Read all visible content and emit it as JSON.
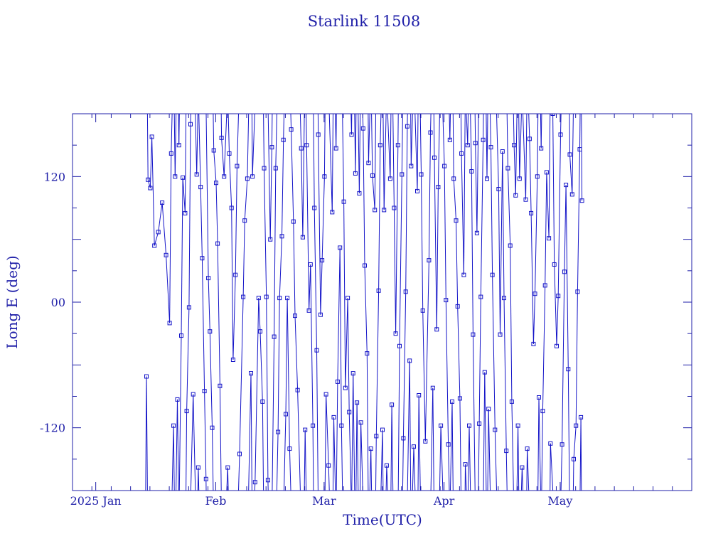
{
  "chart_data": {
    "type": "line",
    "title": "Starlink 11508",
    "xlabel": "Time(UTC)",
    "ylabel": "Long E (deg)",
    "ylim": [
      -180,
      180
    ],
    "xlim_days_from_2024_12_26": [
      0,
      160
    ],
    "grid": false,
    "x_tick_labels": [
      "2025 Jan",
      "Feb",
      "Mar",
      "Apr",
      "May"
    ],
    "y_tick_labels": [
      "120",
      "00",
      "-120"
    ],
    "y_tick_values": [
      120,
      0,
      -120
    ],
    "series_color": "#1414c8",
    "series": [
      {
        "name": "Long E",
        "points": [
          [
            "2025-01-14",
            -71
          ],
          [
            "2025-01-14",
            117
          ],
          [
            "2025-01-15",
            109
          ],
          [
            "2025-01-15",
            158
          ],
          [
            "2025-01-16",
            54
          ],
          [
            "2025-01-17",
            67
          ],
          [
            "2025-01-18",
            95
          ],
          [
            "2025-01-19",
            45
          ],
          [
            "2025-01-20",
            -20
          ],
          [
            "2025-01-20",
            142
          ],
          [
            "2025-01-21",
            -118
          ],
          [
            "2025-01-21",
            120
          ],
          [
            "2025-01-22",
            -93
          ],
          [
            "2025-01-22",
            150
          ],
          [
            "2025-01-23",
            -32
          ],
          [
            "2025-01-23",
            119
          ],
          [
            "2025-01-24",
            85
          ],
          [
            "2025-01-24",
            -104
          ],
          [
            "2025-01-25",
            -5
          ],
          [
            "2025-01-25",
            170
          ],
          [
            "2025-01-26",
            -88
          ],
          [
            "2025-01-27",
            122
          ],
          [
            "2025-01-27",
            -158
          ],
          [
            "2025-01-28",
            110
          ],
          [
            "2025-01-28",
            42
          ],
          [
            "2025-01-29",
            -85
          ],
          [
            "2025-01-29",
            -169
          ],
          [
            "2025-01-30",
            23
          ],
          [
            "2025-01-30",
            -28
          ],
          [
            "2025-01-31",
            -120
          ],
          [
            "2025-01-31",
            145
          ],
          [
            "2025-02-01",
            114
          ],
          [
            "2025-02-01",
            56
          ],
          [
            "2025-02-02",
            -80
          ],
          [
            "2025-02-02",
            157
          ],
          [
            "2025-02-03",
            120
          ],
          [
            "2025-02-04",
            -158
          ],
          [
            "2025-02-04",
            142
          ],
          [
            "2025-02-05",
            90
          ],
          [
            "2025-02-05",
            -55
          ],
          [
            "2025-02-06",
            26
          ],
          [
            "2025-02-06",
            130
          ],
          [
            "2025-02-07",
            -145
          ],
          [
            "2025-02-08",
            5
          ],
          [
            "2025-02-08",
            78
          ],
          [
            "2025-02-09",
            118
          ],
          [
            "2025-02-10",
            -68
          ],
          [
            "2025-02-10",
            120
          ],
          [
            "2025-02-11",
            -172
          ],
          [
            "2025-02-12",
            4
          ],
          [
            "2025-02-12",
            -28
          ],
          [
            "2025-02-13",
            -95
          ],
          [
            "2025-02-13",
            128
          ],
          [
            "2025-02-14",
            5
          ],
          [
            "2025-02-14",
            -170
          ],
          [
            "2025-02-15",
            60
          ],
          [
            "2025-02-15",
            148
          ],
          [
            "2025-02-16",
            -33
          ],
          [
            "2025-02-16",
            128
          ],
          [
            "2025-02-17",
            -124
          ],
          [
            "2025-02-17",
            4
          ],
          [
            "2025-02-18",
            63
          ],
          [
            "2025-02-18",
            155
          ],
          [
            "2025-02-19",
            -107
          ],
          [
            "2025-02-19",
            4
          ],
          [
            "2025-02-20",
            -140
          ],
          [
            "2025-02-20",
            165
          ],
          [
            "2025-02-21",
            77
          ],
          [
            "2025-02-21",
            -13
          ],
          [
            "2025-02-22",
            -84
          ],
          [
            "2025-02-23",
            147
          ],
          [
            "2025-02-23",
            62
          ],
          [
            "2025-02-24",
            -122
          ],
          [
            "2025-02-24",
            150
          ],
          [
            "2025-02-25",
            -8
          ],
          [
            "2025-02-25",
            36
          ],
          [
            "2025-02-26",
            -118
          ],
          [
            "2025-02-26",
            90
          ],
          [
            "2025-02-27",
            -46
          ],
          [
            "2025-02-27",
            160
          ],
          [
            "2025-02-28",
            -12
          ],
          [
            "2025-02-28",
            40
          ],
          [
            "2025-03-01",
            120
          ],
          [
            "2025-03-01",
            -88
          ],
          [
            "2025-03-02",
            -156
          ],
          [
            "2025-03-03",
            86
          ],
          [
            "2025-03-03",
            -110
          ],
          [
            "2025-03-04",
            147
          ],
          [
            "2025-03-04",
            -76
          ],
          [
            "2025-03-05",
            52
          ],
          [
            "2025-03-05",
            -118
          ],
          [
            "2025-03-06",
            96
          ],
          [
            "2025-03-06",
            -82
          ],
          [
            "2025-03-07",
            4
          ],
          [
            "2025-03-07",
            -105
          ],
          [
            "2025-03-08",
            160
          ],
          [
            "2025-03-08",
            -68
          ],
          [
            "2025-03-09",
            123
          ],
          [
            "2025-03-09",
            -96
          ],
          [
            "2025-03-10",
            104
          ],
          [
            "2025-03-10",
            -115
          ],
          [
            "2025-03-11",
            166
          ],
          [
            "2025-03-11",
            35
          ],
          [
            "2025-03-12",
            -49
          ],
          [
            "2025-03-12",
            133
          ],
          [
            "2025-03-13",
            -140
          ],
          [
            "2025-03-13",
            121
          ],
          [
            "2025-03-14",
            88
          ],
          [
            "2025-03-14",
            -128
          ],
          [
            "2025-03-15",
            11
          ],
          [
            "2025-03-15",
            150
          ],
          [
            "2025-03-16",
            -122
          ],
          [
            "2025-03-16",
            88
          ],
          [
            "2025-03-17",
            -156
          ],
          [
            "2025-03-18",
            118
          ],
          [
            "2025-03-18",
            -98
          ],
          [
            "2025-03-19",
            90
          ],
          [
            "2025-03-19",
            -30
          ],
          [
            "2025-03-20",
            150
          ],
          [
            "2025-03-20",
            -42
          ],
          [
            "2025-03-21",
            122
          ],
          [
            "2025-03-21",
            -130
          ],
          [
            "2025-03-22",
            10
          ],
          [
            "2025-03-22",
            168
          ],
          [
            "2025-03-23",
            -56
          ],
          [
            "2025-03-23",
            130
          ],
          [
            "2025-03-24",
            -138
          ],
          [
            "2025-03-25",
            106
          ],
          [
            "2025-03-25",
            -89
          ],
          [
            "2025-03-26",
            122
          ],
          [
            "2025-03-26",
            -8
          ],
          [
            "2025-03-27",
            -133
          ],
          [
            "2025-03-28",
            40
          ],
          [
            "2025-03-28",
            162
          ],
          [
            "2025-03-29",
            -82
          ],
          [
            "2025-03-29",
            138
          ],
          [
            "2025-03-30",
            -26
          ],
          [
            "2025-03-30",
            110
          ],
          [
            "2025-03-31",
            -118
          ],
          [
            "2025-04-01",
            130
          ],
          [
            "2025-04-01",
            2
          ],
          [
            "2025-04-02",
            -136
          ],
          [
            "2025-04-02",
            155
          ],
          [
            "2025-04-03",
            -95
          ],
          [
            "2025-04-03",
            118
          ],
          [
            "2025-04-04",
            78
          ],
          [
            "2025-04-04",
            -4
          ],
          [
            "2025-04-05",
            -92
          ],
          [
            "2025-04-05",
            142
          ],
          [
            "2025-04-06",
            26
          ],
          [
            "2025-04-06",
            -155
          ],
          [
            "2025-04-07",
            150
          ],
          [
            "2025-04-07",
            -118
          ],
          [
            "2025-04-08",
            125
          ],
          [
            "2025-04-08",
            -31
          ],
          [
            "2025-04-09",
            152
          ],
          [
            "2025-04-09",
            66
          ],
          [
            "2025-04-10",
            -116
          ],
          [
            "2025-04-10",
            5
          ],
          [
            "2025-04-11",
            155
          ],
          [
            "2025-04-11",
            -67
          ],
          [
            "2025-04-12",
            118
          ],
          [
            "2025-04-12",
            -102
          ],
          [
            "2025-04-13",
            148
          ],
          [
            "2025-04-13",
            26
          ],
          [
            "2025-04-14",
            -122
          ],
          [
            "2025-04-15",
            108
          ],
          [
            "2025-04-15",
            -31
          ],
          [
            "2025-04-16",
            144
          ],
          [
            "2025-04-16",
            4
          ],
          [
            "2025-04-17",
            -142
          ],
          [
            "2025-04-17",
            128
          ],
          [
            "2025-04-18",
            54
          ],
          [
            "2025-04-18",
            -95
          ],
          [
            "2025-04-19",
            150
          ],
          [
            "2025-04-19",
            102
          ],
          [
            "2025-04-20",
            -118
          ],
          [
            "2025-04-20",
            118
          ],
          [
            "2025-04-21",
            -158
          ],
          [
            "2025-04-22",
            98
          ],
          [
            "2025-04-22",
            -140
          ],
          [
            "2025-04-23",
            156
          ],
          [
            "2025-04-23",
            85
          ],
          [
            "2025-04-24",
            -40
          ],
          [
            "2025-04-24",
            8
          ],
          [
            "2025-04-25",
            120
          ],
          [
            "2025-04-25",
            -91
          ],
          [
            "2025-04-26",
            147
          ],
          [
            "2025-04-26",
            -104
          ],
          [
            "2025-04-27",
            16
          ],
          [
            "2025-04-27",
            124
          ],
          [
            "2025-04-28",
            61
          ],
          [
            "2025-04-28",
            -135
          ],
          [
            "2025-04-29",
            180
          ],
          [
            "2025-04-29",
            36
          ],
          [
            "2025-04-30",
            -42
          ],
          [
            "2025-04-30",
            6
          ],
          [
            "2025-05-01",
            160
          ],
          [
            "2025-05-01",
            -136
          ],
          [
            "2025-05-02",
            29
          ],
          [
            "2025-05-02",
            112
          ],
          [
            "2025-05-03",
            -64
          ],
          [
            "2025-05-03",
            141
          ],
          [
            "2025-05-04",
            103
          ],
          [
            "2025-05-04",
            -150
          ],
          [
            "2025-05-05",
            -118
          ],
          [
            "2025-05-05",
            10
          ],
          [
            "2025-05-06",
            146
          ],
          [
            "2025-05-06",
            -110
          ],
          [
            "2025-05-06",
            97
          ]
        ]
      }
    ]
  }
}
